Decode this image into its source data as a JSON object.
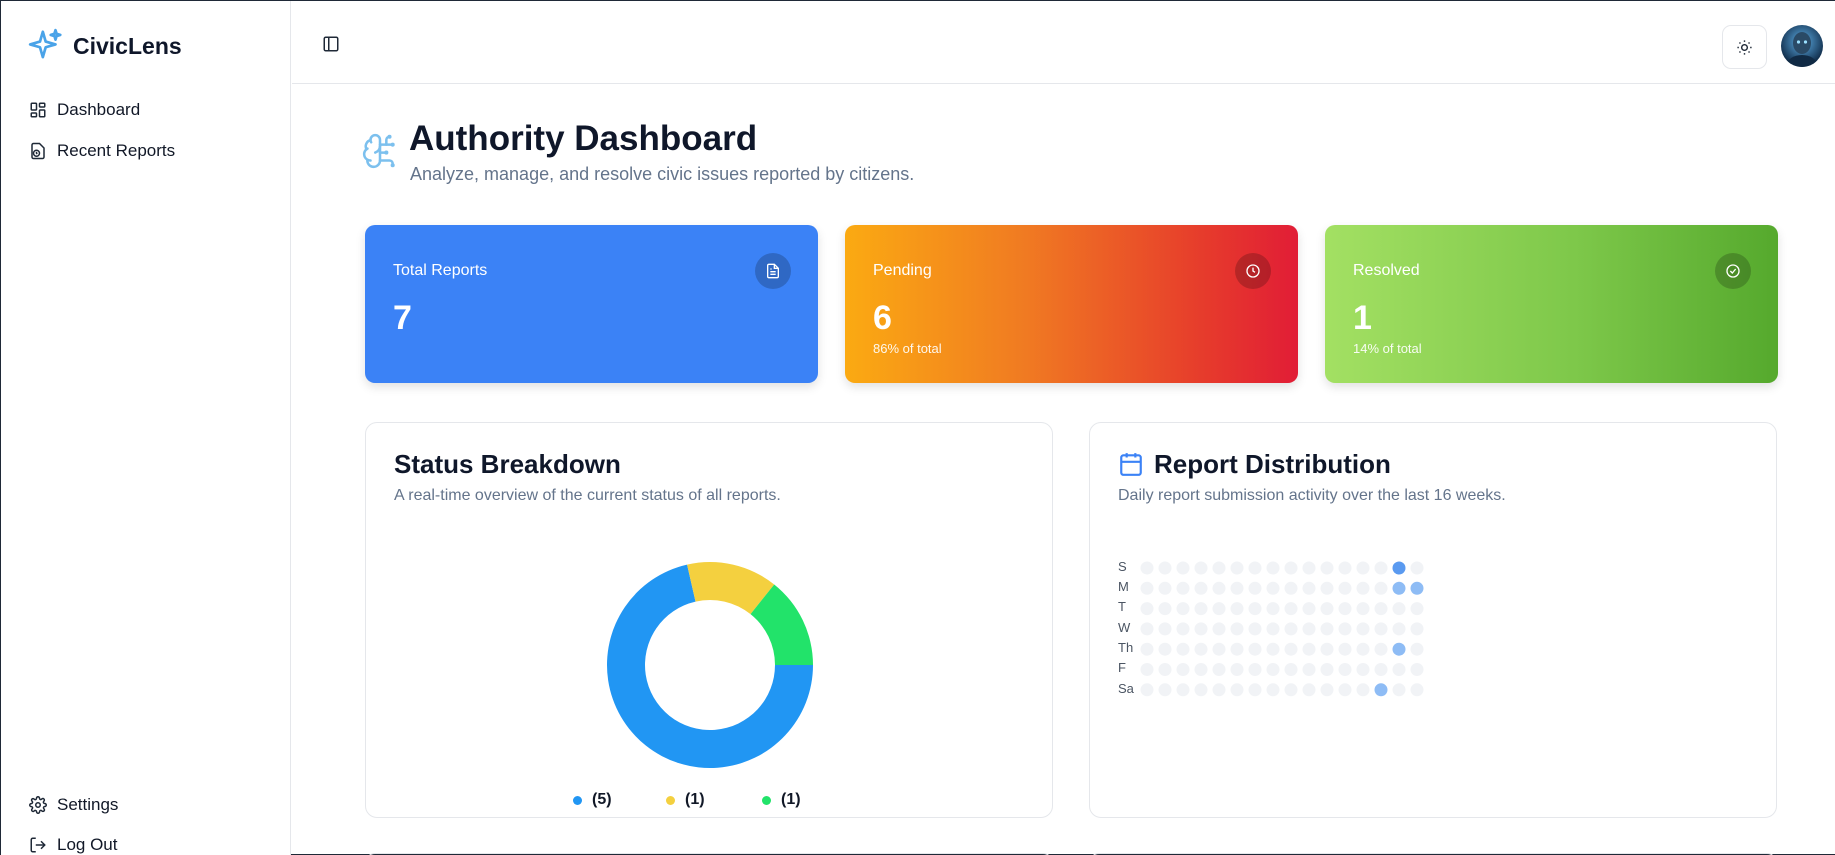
{
  "app": {
    "name": "CivicLens"
  },
  "sidebar": {
    "items": [
      {
        "label": "Dashboard",
        "icon": "dashboard-icon"
      },
      {
        "label": "Recent Reports",
        "icon": "recent-reports-icon"
      }
    ],
    "footer": [
      {
        "label": "Settings",
        "icon": "gear-icon"
      },
      {
        "label": "Log Out",
        "icon": "logout-icon"
      }
    ]
  },
  "header": {
    "title": "Authority Dashboard",
    "subtitle": "Analyze, manage, and resolve civic issues reported by citizens."
  },
  "stats": {
    "total": {
      "label": "Total Reports",
      "value": "7"
    },
    "pending": {
      "label": "Pending",
      "value": "6",
      "percent": "86% of total"
    },
    "resolved": {
      "label": "Resolved",
      "value": "1",
      "percent": "14% of total"
    }
  },
  "status_panel": {
    "title": "Status Breakdown",
    "subtitle": "A real-time overview of the current status of all reports.",
    "legend": [
      {
        "text": "(5)",
        "color": "#2196f3"
      },
      {
        "text": "(1)",
        "color": "#f4d03f"
      },
      {
        "text": "(1)",
        "color": "#22e36a"
      }
    ]
  },
  "distribution_panel": {
    "title": "Report Distribution",
    "subtitle": "Daily report submission activity over the last 16 weeks.",
    "days": [
      "S",
      "M",
      "T",
      "W",
      "Th",
      "F",
      "Sa"
    ]
  },
  "colors": {
    "accent": "#3b82f6",
    "pending_start": "#fbaa12",
    "pending_end": "#e11d36",
    "resolved_start": "#a3e063",
    "resolved_end": "#55a92d"
  },
  "chart_data": [
    {
      "type": "pie",
      "title": "Status Breakdown",
      "labels": [
        "(5)",
        "(1)",
        "(1)"
      ],
      "values": [
        5,
        1,
        1
      ],
      "colors": [
        "#2196f3",
        "#f4d03f",
        "#22e36a"
      ],
      "donut": true,
      "legend": "bottom"
    },
    {
      "type": "heatmap",
      "title": "Report Distribution",
      "rows": [
        "S",
        "M",
        "T",
        "W",
        "Th",
        "F",
        "Sa"
      ],
      "weeks": 16,
      "active_cells": [
        {
          "day": "S",
          "week": 15,
          "count": 2
        },
        {
          "day": "M",
          "week": 15,
          "count": 1
        },
        {
          "day": "M",
          "week": 16,
          "count": 1
        },
        {
          "day": "Th",
          "week": 15,
          "count": 1
        },
        {
          "day": "Sa",
          "week": 14,
          "count": 1
        }
      ]
    }
  ]
}
